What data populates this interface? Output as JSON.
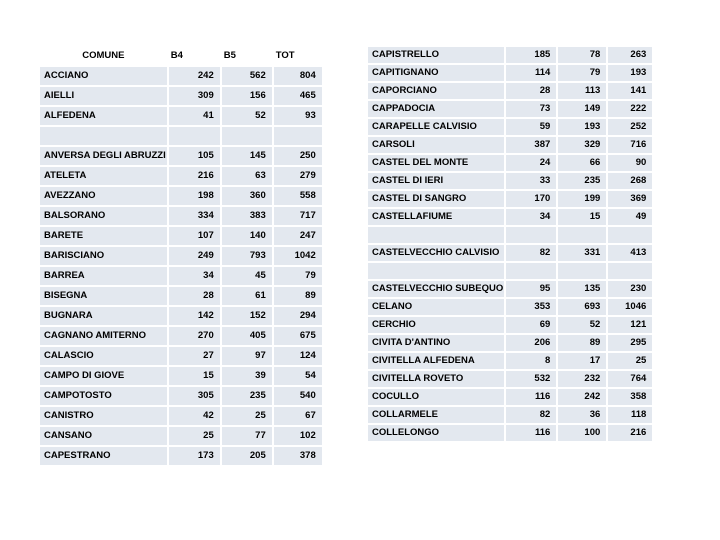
{
  "slide": {
    "background": "#ffffff"
  },
  "style": {
    "cell_fill": "#e3e8ef",
    "grid_line": "#ffffff",
    "text_color": "#000000"
  },
  "left_table": {
    "headers": [
      "COMUNE",
      "B4",
      "B5",
      "TOT"
    ],
    "rows": [
      [
        "ACCIANO",
        "242",
        "562",
        "804"
      ],
      [
        "AIELLI",
        "309",
        "156",
        "465"
      ],
      [
        "ALFEDENA",
        "41",
        "52",
        "93"
      ],
      [
        "",
        "",
        "",
        ""
      ],
      [
        "ANVERSA DEGLI ABRUZZI",
        "105",
        "145",
        "250"
      ],
      [
        "ATELETA",
        "216",
        "63",
        "279"
      ],
      [
        "AVEZZANO",
        "198",
        "360",
        "558"
      ],
      [
        "BALSORANO",
        "334",
        "383",
        "717"
      ],
      [
        "BARETE",
        "107",
        "140",
        "247"
      ],
      [
        "BARISCIANO",
        "249",
        "793",
        "1042"
      ],
      [
        "BARREA",
        "34",
        "45",
        "79"
      ],
      [
        "BISEGNA",
        "28",
        "61",
        "89"
      ],
      [
        "BUGNARA",
        "142",
        "152",
        "294"
      ],
      [
        "CAGNANO AMITERNO",
        "270",
        "405",
        "675"
      ],
      [
        "CALASCIO",
        "27",
        "97",
        "124"
      ],
      [
        "CAMPO DI GIOVE",
        "15",
        "39",
        "54"
      ],
      [
        "CAMPOTOSTO",
        "305",
        "235",
        "540"
      ],
      [
        "CANISTRO",
        "42",
        "25",
        "67"
      ],
      [
        "CANSANO",
        "25",
        "77",
        "102"
      ],
      [
        "CAPESTRANO",
        "173",
        "205",
        "378"
      ]
    ]
  },
  "right_table": {
    "headers": null,
    "rows": [
      [
        "CAPISTRELLO",
        "185",
        "78",
        "263"
      ],
      [
        "CAPITIGNANO",
        "114",
        "79",
        "193"
      ],
      [
        "CAPORCIANO",
        "28",
        "113",
        "141"
      ],
      [
        "CAPPADOCIA",
        "73",
        "149",
        "222"
      ],
      [
        "CARAPELLE CALVISIO",
        "59",
        "193",
        "252"
      ],
      [
        "CARSOLI",
        "387",
        "329",
        "716"
      ],
      [
        "CASTEL DEL MONTE",
        "24",
        "66",
        "90"
      ],
      [
        "CASTEL DI IERI",
        "33",
        "235",
        "268"
      ],
      [
        "CASTEL DI SANGRO",
        "170",
        "199",
        "369"
      ],
      [
        "CASTELLAFIUME",
        "34",
        "15",
        "49"
      ],
      [
        "",
        "",
        "",
        ""
      ],
      [
        "CASTELVECCHIO CALVISIO",
        "82",
        "331",
        "413"
      ],
      [
        "",
        "",
        "",
        ""
      ],
      [
        "CASTELVECCHIO SUBEQUO",
        "95",
        "135",
        "230"
      ],
      [
        "CELANO",
        "353",
        "693",
        "1046"
      ],
      [
        "CERCHIO",
        "69",
        "52",
        "121"
      ],
      [
        "CIVITA D'ANTINO",
        "206",
        "89",
        "295"
      ],
      [
        "CIVITELLA ALFEDENA",
        "8",
        "17",
        "25"
      ],
      [
        "CIVITELLA ROVETO",
        "532",
        "232",
        "764"
      ],
      [
        "COCULLO",
        "116",
        "242",
        "358"
      ],
      [
        "COLLARMELE",
        "82",
        "36",
        "118"
      ],
      [
        "COLLELONGO",
        "116",
        "100",
        "216"
      ]
    ]
  }
}
